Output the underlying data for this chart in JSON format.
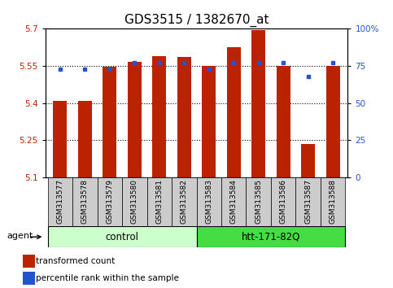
{
  "title": "GDS3515 / 1382670_at",
  "samples": [
    "GSM313577",
    "GSM313578",
    "GSM313579",
    "GSM313580",
    "GSM313581",
    "GSM313582",
    "GSM313583",
    "GSM313584",
    "GSM313585",
    "GSM313586",
    "GSM313587",
    "GSM313588"
  ],
  "red_values": [
    5.41,
    5.41,
    5.545,
    5.565,
    5.59,
    5.585,
    5.55,
    5.625,
    5.695,
    5.55,
    5.235,
    5.55
  ],
  "blue_values": [
    73,
    73,
    73,
    77,
    77,
    77,
    73,
    77,
    77,
    77,
    68,
    77
  ],
  "ylim_left": [
    5.1,
    5.7
  ],
  "ylim_right": [
    0,
    100
  ],
  "yticks_left": [
    5.1,
    5.25,
    5.4,
    5.55,
    5.7
  ],
  "yticks_right": [
    0,
    25,
    50,
    75,
    100
  ],
  "ytick_labels_right": [
    "0",
    "25",
    "50",
    "75",
    "100%"
  ],
  "hlines": [
    5.25,
    5.4,
    5.55
  ],
  "group_labels": [
    "control",
    "htt-171-82Q"
  ],
  "agent_label": "agent",
  "legend_red": "transformed count",
  "legend_blue": "percentile rank within the sample",
  "red_color": "#bb2200",
  "blue_color": "#2255cc",
  "bar_width": 0.55,
  "group_bg_control": "#ccffcc",
  "group_bg_htt": "#44dd44",
  "tick_bg": "#cccccc",
  "title_fontsize": 11,
  "tick_fontsize": 7.5,
  "sample_fontsize": 6.5,
  "group_fontsize": 8.5,
  "legend_fontsize": 7.5
}
